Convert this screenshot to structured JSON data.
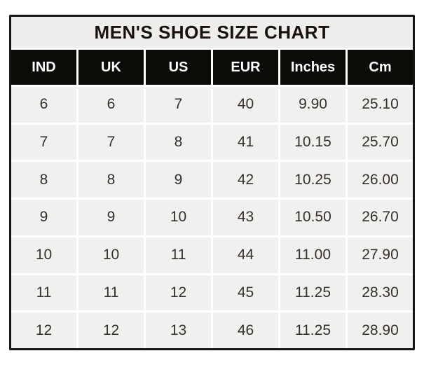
{
  "title": "MEN'S SHOE SIZE CHART",
  "colors": {
    "border": "#171513",
    "separator": "#ffffff",
    "title_bg": "#eeedeb",
    "title_text": "#16130f",
    "header_bg": "#0d0b08",
    "header_text": "#ffffff",
    "cell_bg": "#f1f0ee",
    "cell_text": "#34312d"
  },
  "chart_data": {
    "type": "table",
    "title": "MEN'S SHOE SIZE CHART",
    "columns": [
      "IND",
      "UK",
      "US",
      "EUR",
      "Inches",
      "Cm"
    ],
    "rows": [
      [
        "6",
        "6",
        "7",
        "40",
        "9.90",
        "25.10"
      ],
      [
        "7",
        "7",
        "8",
        "41",
        "10.15",
        "25.70"
      ],
      [
        "8",
        "8",
        "9",
        "42",
        "10.25",
        "26.00"
      ],
      [
        "9",
        "9",
        "10",
        "43",
        "10.50",
        "26.70"
      ],
      [
        "10",
        "10",
        "11",
        "44",
        "11.00",
        "27.90"
      ],
      [
        "11",
        "11",
        "12",
        "45",
        "11.25",
        "28.30"
      ],
      [
        "12",
        "12",
        "13",
        "46",
        "11.25",
        "28.90"
      ]
    ]
  }
}
